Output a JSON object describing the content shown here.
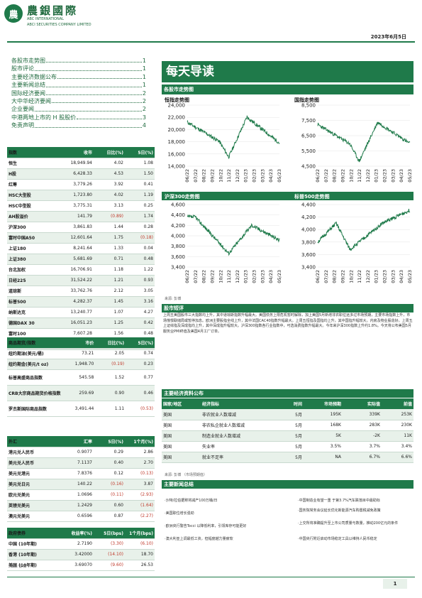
{
  "header": {
    "logo_glyph": "農",
    "company_cn": "農銀國際",
    "company_en1": "ABC INTERNATIONAL",
    "company_en2": "ABCI SECURITIES COMPANY LIMITED",
    "date": "2023年6月5日"
  },
  "toc": [
    {
      "title": "各股市走势图",
      "page": "1"
    },
    {
      "title": "股市评论",
      "page": "1"
    },
    {
      "title": "主要经济数据公布",
      "page": "1"
    },
    {
      "title": "主要新闻总结",
      "page": "1"
    },
    {
      "title": "国际经济要闻",
      "page": "2"
    },
    {
      "title": "大中华经济要闻",
      "page": "2"
    },
    {
      "title": "企业要闻",
      "page": "2"
    },
    {
      "title": "中港两地上市的 H 股股价",
      "page": "3"
    },
    {
      "title": "免责声明",
      "page": "4"
    }
  ],
  "page_title": "每天导读",
  "indices": {
    "headers": [
      "指数",
      "收市",
      "日比(%)",
      "5日(%)"
    ],
    "rows": [
      [
        "恒生",
        "18,949.94",
        "4.02",
        "1.08"
      ],
      [
        "H股",
        "6,428.33",
        "4.53",
        "1.50"
      ],
      [
        "红筹",
        "3,779.26",
        "3.92",
        "0.41"
      ],
      [
        "HSC大型股",
        "1,723.80",
        "4.02",
        "1.19"
      ],
      [
        "HSC中型股",
        "3,775.31",
        "3.13",
        "0.25"
      ],
      [
        "AH股溢价",
        "141.79",
        "(0.89)",
        "1.74"
      ],
      [
        "沪深300",
        "3,861.83",
        "1.44",
        "0.28"
      ],
      [
        "富时中国A50",
        "12,601.64",
        "1.75",
        "(0.18)"
      ],
      [
        "上证180",
        "8,241.64",
        "1.33",
        "0.04"
      ],
      [
        "上证380",
        "5,681.69",
        "0.71",
        "0.48"
      ],
      [
        "台北加权",
        "16,706.91",
        "1.18",
        "1.22"
      ],
      [
        "日经225",
        "31,524.22",
        "1.21",
        "0.93"
      ],
      [
        "道琼斯",
        "33,762.76",
        "2.12",
        "3.05"
      ],
      [
        "标普500",
        "4,282.37",
        "1.45",
        "3.16"
      ],
      [
        "纳斯达克",
        "13,240.77",
        "1.07",
        "4.27"
      ],
      [
        "德国DAX 30",
        "16,051.23",
        "1.25",
        "0.42"
      ],
      [
        "富时100",
        "7,607.28",
        "1.56",
        "0.48"
      ],
      [
        "法国CAC 40",
        "7,270.69",
        "1.87",
        "(0.66)"
      ]
    ]
  },
  "commodities": {
    "headers": [
      "商品期货/指数",
      "市价",
      "日比(%)",
      "5日(%)"
    ],
    "rows": [
      [
        "纽约期油(美元/桶)",
        "73.21",
        "2.05",
        "0.74"
      ],
      [
        "纽约期金(美元/t oz)",
        "1,948.70",
        "(0.19)",
        "0.23"
      ],
      [
        "标普高盛商品指数",
        "545.58",
        "1.52",
        "0.77"
      ],
      [
        "CRB大宗商品期货价格指数",
        "259.69",
        "0.90",
        "0.46"
      ],
      [
        "罗杰斯国际商品指数",
        "3,491.44",
        "1.11",
        "(0.53)"
      ]
    ]
  },
  "fx": {
    "headers": [
      "外汇",
      "汇率",
      "5日(%)",
      "1个月(%)"
    ],
    "rows": [
      [
        "港元兑人民币",
        "0.9077",
        "0.29",
        "2.86"
      ],
      [
        "美元兑人民币",
        "7.1137",
        "0.40",
        "2.70"
      ],
      [
        "美元兑港元",
        "7.8376",
        "0.12",
        "(0.13)"
      ],
      [
        "美元兑日元",
        "140.22",
        "(0.16)",
        "3.87"
      ],
      [
        "欧元兑美元",
        "1.0696",
        "(0.11)",
        "(2.93)"
      ],
      [
        "英镑兑美元",
        "1.2429",
        "0.60",
        "(1.64)"
      ],
      [
        "澳元兑美元",
        "0.6596",
        "0.87",
        "(2.27)"
      ]
    ]
  },
  "bonds": {
    "headers": [
      "政府债券",
      "收益率(%)",
      "5日(bps)",
      "1个月(bps)"
    ],
    "rows": [
      [
        "中国 (10年期)",
        "2.7190",
        "(3.30)",
        "(6.10)"
      ],
      [
        "香港 (10年期)",
        "3.42000",
        "(14.10)",
        "18.70"
      ],
      [
        "美国 (10年期)",
        "3.69070",
        "(9.60)",
        "26.53"
      ]
    ]
  },
  "source_left": "来源: 彭博",
  "charts_section_title": "各股市走势图",
  "charts": [
    {
      "title": "恒指走势图",
      "yticks": [
        "24,000",
        "22,000",
        "20,000",
        "18,000",
        "16,000",
        "14,000"
      ]
    },
    {
      "title": "国指走势图",
      "yticks": [
        "8,500",
        "7,500",
        "6,500",
        "5,500",
        "4,500"
      ]
    },
    {
      "title": "沪深300走势图",
      "yticks": [
        "4,600",
        "4,400",
        "4,200",
        "4,000",
        "3,800",
        "3,600",
        "3,400"
      ]
    },
    {
      "title": "标普500走势图",
      "yticks": [
        "4,400",
        "4,200",
        "4,000",
        "3,800",
        "3,600",
        "3,400"
      ]
    }
  ],
  "chart_xticks": [
    "06/22",
    "07/22",
    "08/22",
    "09/22",
    "10/22",
    "11/22",
    "12/22",
    "01/23",
    "02/23",
    "03/23",
    "04/23",
    "05/23"
  ],
  "charts_source": "来源: 彭博",
  "market_comment": {
    "title": "股市短评",
    "body": "上周五美国股市三大指数均上升，其中道琼斯指数升幅最大。美国债务上限危机暂时解除，加上美国5月新增非农职位远多过市场预期，主要市场指数上升，市场憧憬联储局或暂停加息。欧洲主要股指全线上升，其中法国CAC40指数升幅最大。上周五恒指及国指均上升，其中国指升幅较大。内房及物业股造好。上周五上证综指及深成指均上升，其中深成指升幅较大。沪深300指数各行业指数中，可选消费指数升幅最大。今年来沪深300指数上升约1.8%。今天将公布美国5月服务业PMI终值及美国4月工厂订单。"
  },
  "econ": {
    "title": "主要经济资料公布",
    "headers": [
      "国家/地区",
      "经济指标",
      "时间",
      "市场预期",
      "实际值",
      "前值"
    ],
    "rows": [
      [
        "美国",
        "非农就业人数增减",
        "5月",
        "195K",
        "339K",
        "253K"
      ],
      [
        "美国",
        "非农私企就业人数增减",
        "5月",
        "168K",
        "283K",
        "230K"
      ],
      [
        "美国",
        "制造业就业人数增减",
        "5月",
        "5K",
        "-2K",
        "11K"
      ],
      [
        "美国",
        "失业率",
        "5月",
        "3.5%",
        "3.7%",
        "3.4%"
      ],
      [
        "美国",
        "就业不足率",
        "5月",
        "NA",
        "6.7%",
        "6.6%"
      ]
    ],
    "source": "来源: 彭博 （市场预期值）"
  },
  "news": {
    "title": "主要新闻总结",
    "left": [
      "·沙特/拉伯据称将减产100万桶/日",
      "·美国职位增长强劲",
      "·欧洲央行警告Tocci 以降低利率，引领库存可能更好",
      "·澳大利亚上调最低工资，但幅度越力量疲软"
    ],
    "right": [
      "·中国制造业有望一重 于第3.7%汽车跌落目中最助标",
      "·国务院常务会议延长优化新能源汽车购置税减免政策",
      "·上交所将准确提升至上市公司质量与数量，推动200亿元的条件",
      "·中国央行附近启动市场稳定工具以维持人民币稳定"
    ]
  },
  "page_number": "1"
}
